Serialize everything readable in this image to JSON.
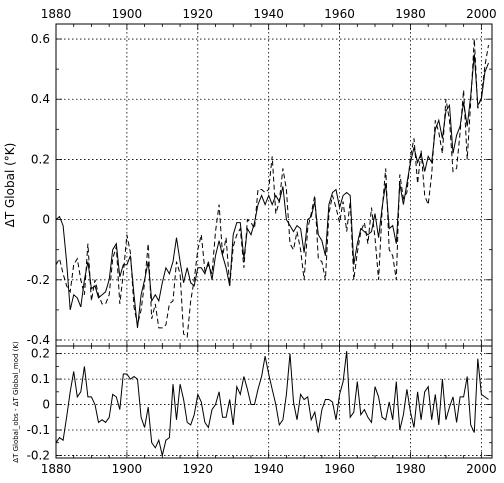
{
  "chart_data": [
    {
      "type": "line",
      "ylabel": "ΔT Global (°K)",
      "xlim": [
        1880,
        2003
      ],
      "ylim": [
        -0.42,
        0.65
      ],
      "x_ticks": [
        1880,
        1900,
        1920,
        1940,
        1960,
        1980,
        2000
      ],
      "y_ticks": [
        -0.4,
        -0.2,
        0,
        0.2,
        0.4,
        0.6
      ],
      "y_tick_labels": [
        "-0.4",
        "-0.2",
        "0",
        "0.2",
        "0.4",
        "0.6"
      ],
      "x_labels_position": "top",
      "grid": true,
      "series": [
        {
          "style": "solid",
          "x": [
            1880,
            1881,
            1882,
            1883,
            1884,
            1885,
            1886,
            1887,
            1888,
            1889,
            1890,
            1891,
            1892,
            1893,
            1894,
            1895,
            1896,
            1897,
            1898,
            1899,
            1900,
            1901,
            1902,
            1903,
            1904,
            1905,
            1906,
            1907,
            1908,
            1909,
            1910,
            1911,
            1912,
            1913,
            1914,
            1915,
            1916,
            1917,
            1918,
            1919,
            1920,
            1921,
            1922,
            1923,
            1924,
            1925,
            1926,
            1927,
            1928,
            1929,
            1930,
            1931,
            1932,
            1933,
            1934,
            1935,
            1936,
            1937,
            1938,
            1939,
            1940,
            1941,
            1942,
            1943,
            1944,
            1945,
            1946,
            1947,
            1948,
            1949,
            1950,
            1951,
            1952,
            1953,
            1954,
            1955,
            1956,
            1957,
            1958,
            1959,
            1960,
            1961,
            1962,
            1963,
            1964,
            1965,
            1966,
            1967,
            1968,
            1969,
            1970,
            1971,
            1972,
            1973,
            1974,
            1975,
            1976,
            1977,
            1978,
            1979,
            1980,
            1981,
            1982,
            1983,
            1984,
            1985,
            1986,
            1987,
            1988,
            1989,
            1990,
            1991,
            1992,
            1993,
            1994,
            1995,
            1996,
            1997,
            1998,
            1999,
            2000,
            2001,
            2002
          ],
          "y": [
            0.0,
            0.01,
            -0.02,
            -0.14,
            -0.3,
            -0.25,
            -0.26,
            -0.29,
            -0.2,
            -0.14,
            -0.23,
            -0.22,
            -0.26,
            -0.25,
            -0.24,
            -0.2,
            -0.1,
            -0.08,
            -0.19,
            -0.15,
            -0.15,
            -0.12,
            -0.25,
            -0.36,
            -0.25,
            -0.2,
            -0.14,
            -0.27,
            -0.25,
            -0.27,
            -0.21,
            -0.16,
            -0.18,
            -0.14,
            -0.06,
            -0.14,
            -0.21,
            -0.16,
            -0.21,
            -0.22,
            -0.16,
            -0.16,
            -0.18,
            -0.14,
            -0.2,
            -0.12,
            -0.07,
            -0.12,
            -0.16,
            -0.22,
            -0.05,
            -0.01,
            -0.01,
            -0.13,
            -0.03,
            -0.05,
            -0.01,
            0.05,
            0.08,
            0.05,
            0.08,
            0.05,
            0.08,
            0.06,
            0.11,
            0.0,
            -0.02,
            -0.04,
            -0.02,
            -0.03,
            -0.11,
            0.0,
            0.01,
            0.06,
            -0.05,
            -0.07,
            -0.12,
            0.05,
            0.09,
            0.1,
            0.04,
            0.08,
            0.09,
            0.08,
            -0.15,
            -0.08,
            -0.03,
            -0.04,
            -0.05,
            -0.04,
            0.02,
            -0.06,
            0.04,
            0.12,
            -0.03,
            -0.02,
            -0.08,
            0.12,
            0.05,
            0.12,
            0.19,
            0.24,
            0.19,
            0.22,
            0.16,
            0.21,
            0.19,
            0.3,
            0.33,
            0.27,
            0.36,
            0.38,
            0.22,
            0.28,
            0.31,
            0.39,
            0.31,
            0.41,
            0.55,
            0.38,
            0.4,
            0.49,
            0.52
          ]
        },
        {
          "style": "dashed",
          "x": [
            1880,
            1881,
            1882,
            1883,
            1884,
            1885,
            1886,
            1887,
            1888,
            1889,
            1890,
            1891,
            1892,
            1893,
            1894,
            1895,
            1896,
            1897,
            1898,
            1899,
            1900,
            1901,
            1902,
            1903,
            1904,
            1905,
            1906,
            1907,
            1908,
            1909,
            1910,
            1911,
            1912,
            1913,
            1914,
            1915,
            1916,
            1917,
            1918,
            1919,
            1920,
            1921,
            1922,
            1923,
            1924,
            1925,
            1926,
            1927,
            1928,
            1929,
            1930,
            1931,
            1932,
            1933,
            1934,
            1935,
            1936,
            1937,
            1938,
            1939,
            1940,
            1941,
            1942,
            1943,
            1944,
            1945,
            1946,
            1947,
            1948,
            1949,
            1950,
            1951,
            1952,
            1953,
            1954,
            1955,
            1956,
            1957,
            1958,
            1959,
            1960,
            1961,
            1962,
            1963,
            1964,
            1965,
            1966,
            1967,
            1968,
            1969,
            1970,
            1971,
            1972,
            1973,
            1974,
            1975,
            1976,
            1977,
            1978,
            1979,
            1980,
            1981,
            1982,
            1983,
            1984,
            1985,
            1986,
            1987,
            1988,
            1989,
            1990,
            1991,
            1992,
            1993,
            1994,
            1995,
            1996,
            1997,
            1998,
            1999,
            2000,
            2001,
            2002
          ],
          "y": [
            -0.15,
            -0.13,
            -0.18,
            -0.22,
            -0.24,
            -0.15,
            -0.13,
            -0.2,
            -0.25,
            -0.08,
            -0.27,
            -0.2,
            -0.25,
            -0.28,
            -0.28,
            -0.25,
            -0.13,
            -0.09,
            -0.28,
            -0.18,
            -0.05,
            -0.11,
            -0.29,
            -0.35,
            -0.3,
            -0.21,
            -0.08,
            -0.33,
            -0.28,
            -0.36,
            -0.36,
            -0.35,
            -0.28,
            -0.27,
            -0.14,
            -0.18,
            -0.38,
            -0.39,
            -0.27,
            -0.2,
            -0.1,
            -0.05,
            -0.17,
            -0.15,
            -0.18,
            -0.04,
            0.05,
            -0.12,
            -0.06,
            -0.22,
            -0.09,
            -0.05,
            -0.03,
            -0.16,
            0.0,
            -0.01,
            -0.03,
            0.1,
            0.1,
            0.09,
            0.1,
            0.21,
            0.02,
            0.06,
            0.17,
            0.1,
            -0.08,
            -0.1,
            -0.04,
            -0.1,
            -0.2,
            -0.03,
            0.02,
            0.08,
            -0.13,
            -0.14,
            -0.2,
            0.02,
            0.08,
            0.04,
            -0.01,
            0.06,
            -0.04,
            0.06,
            -0.2,
            -0.11,
            -0.04,
            -0.01,
            -0.08,
            0.04,
            -0.06,
            -0.2,
            0.03,
            0.17,
            -0.1,
            -0.12,
            -0.2,
            0.15,
            0.07,
            0.09,
            0.21,
            0.27,
            0.12,
            0.23,
            0.08,
            0.05,
            0.15,
            0.33,
            0.29,
            0.22,
            0.4,
            0.33,
            0.16,
            0.17,
            0.29,
            0.43,
            0.2,
            0.39,
            0.6,
            0.37,
            0.41,
            0.51,
            0.58
          ]
        }
      ]
    },
    {
      "type": "line",
      "ylabel": "ΔT Global_obs - ΔT Global_mod (K)",
      "xlim": [
        1880,
        2003
      ],
      "ylim": [
        -0.21,
        0.23
      ],
      "x_ticks": [
        1880,
        1900,
        1920,
        1940,
        1960,
        1980,
        2000
      ],
      "x_tick_labels": [
        "1880",
        "1900",
        "1920",
        "1940",
        "1960",
        "1980",
        "2000"
      ],
      "y_ticks": [
        -0.2,
        -0.1,
        0,
        0.1,
        0.2
      ],
      "y_tick_labels": [
        "-0.2",
        "-0.1",
        "0",
        "0.1",
        "0.2"
      ],
      "x_labels_position": "bottom",
      "grid": true,
      "series": [
        {
          "style": "solid",
          "x": [
            1880,
            1881,
            1882,
            1883,
            1884,
            1885,
            1886,
            1887,
            1888,
            1889,
            1890,
            1891,
            1892,
            1893,
            1894,
            1895,
            1896,
            1897,
            1898,
            1899,
            1900,
            1901,
            1902,
            1903,
            1904,
            1905,
            1906,
            1907,
            1908,
            1909,
            1910,
            1911,
            1912,
            1913,
            1914,
            1915,
            1916,
            1917,
            1918,
            1919,
            1920,
            1921,
            1922,
            1923,
            1924,
            1925,
            1926,
            1927,
            1928,
            1929,
            1930,
            1931,
            1932,
            1933,
            1934,
            1935,
            1936,
            1937,
            1938,
            1939,
            1940,
            1941,
            1942,
            1943,
            1944,
            1945,
            1946,
            1947,
            1948,
            1949,
            1950,
            1951,
            1952,
            1953,
            1954,
            1955,
            1956,
            1957,
            1958,
            1959,
            1960,
            1961,
            1962,
            1963,
            1964,
            1965,
            1966,
            1967,
            1968,
            1969,
            1970,
            1971,
            1972,
            1973,
            1974,
            1975,
            1976,
            1977,
            1978,
            1979,
            1980,
            1981,
            1982,
            1983,
            1984,
            1985,
            1986,
            1987,
            1988,
            1989,
            1990,
            1991,
            1992,
            1993,
            1994,
            1995,
            1996,
            1997,
            1998,
            1999,
            2000,
            2001,
            2002
          ],
          "y": [
            -0.15,
            -0.13,
            -0.14,
            -0.05,
            0.05,
            0.13,
            0.03,
            0.05,
            0.15,
            0.03,
            0.03,
            0.0,
            -0.07,
            -0.06,
            -0.07,
            -0.05,
            0.04,
            0.03,
            -0.02,
            0.12,
            0.12,
            0.1,
            0.11,
            0.1,
            -0.05,
            -0.09,
            -0.01,
            -0.15,
            -0.17,
            -0.14,
            -0.2,
            -0.14,
            -0.13,
            0.08,
            -0.06,
            0.08,
            0.02,
            -0.07,
            -0.08,
            -0.04,
            0.04,
            0.01,
            -0.07,
            -0.09,
            -0.02,
            0.0,
            0.05,
            -0.05,
            -0.05,
            0.02,
            -0.08,
            0.07,
            0.04,
            0.11,
            0.06,
            0.0,
            0.0,
            0.06,
            0.11,
            0.19,
            0.12,
            0.06,
            0.0,
            -0.08,
            -0.06,
            0.04,
            0.2,
            0.01,
            -0.06,
            0.04,
            0.02,
            0.03,
            -0.06,
            -0.03,
            -0.11,
            -0.02,
            0.02,
            0.02,
            0.01,
            -0.06,
            0.04,
            0.09,
            0.21,
            -0.05,
            -0.03,
            0.09,
            -0.04,
            -0.02,
            -0.05,
            -0.07,
            0.07,
            0.03,
            -0.05,
            -0.06,
            0.01,
            -0.06,
            0.09,
            -0.1,
            -0.04,
            0.06,
            -0.03,
            -0.09,
            0.05,
            -0.06,
            0.05,
            0.07,
            -0.06,
            0.04,
            -0.08,
            0.1,
            -0.06,
            -0.01,
            0.03,
            -0.07,
            0.03,
            0.03,
            0.11,
            -0.08,
            -0.11,
            0.18,
            0.04,
            0.03,
            0.02
          ]
        }
      ]
    }
  ]
}
